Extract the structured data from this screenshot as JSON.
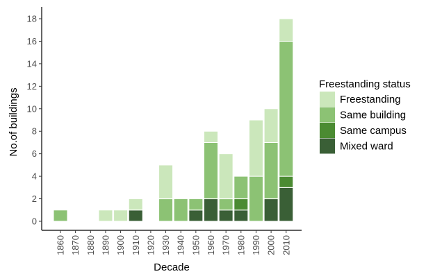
{
  "chart_data": {
    "type": "bar",
    "stacked": true,
    "xlabel": "Decade",
    "ylabel": "No.of buildings",
    "ylim": [
      0,
      18.8
    ],
    "yticks": [
      0,
      2,
      4,
      6,
      8,
      10,
      12,
      14,
      16,
      18
    ],
    "categories": [
      "1860",
      "1870",
      "1880",
      "1890",
      "1900",
      "1910",
      "1920",
      "1930",
      "1940",
      "1950",
      "1960",
      "1970",
      "1980",
      "1990",
      "2000",
      "2010"
    ],
    "legend": {
      "title": "Freestanding status",
      "position": "right"
    },
    "grid": false,
    "series": [
      {
        "name": "Mixed ward",
        "color": "#3a5f36",
        "values": [
          0,
          0,
          0,
          0,
          0,
          1,
          0,
          0,
          0,
          1,
          2,
          1,
          1,
          0,
          2,
          3
        ]
      },
      {
        "name": "Same campus",
        "color": "#4b8b32",
        "values": [
          0,
          0,
          0,
          0,
          0,
          0,
          0,
          0,
          0,
          0,
          0,
          0,
          1,
          0,
          0,
          1
        ]
      },
      {
        "name": "Same building",
        "color": "#8cc274",
        "values": [
          1,
          0,
          0,
          0,
          0,
          0,
          0,
          2,
          2,
          1,
          5,
          1,
          2,
          4,
          5,
          12
        ]
      },
      {
        "name": "Freestanding",
        "color": "#cbe7bb",
        "values": [
          0,
          0,
          0,
          1,
          1,
          1,
          0,
          3,
          0,
          0,
          1,
          4,
          0,
          5,
          3,
          2
        ]
      }
    ],
    "legend_order": [
      "Freestanding",
      "Same building",
      "Same campus",
      "Mixed ward"
    ]
  }
}
